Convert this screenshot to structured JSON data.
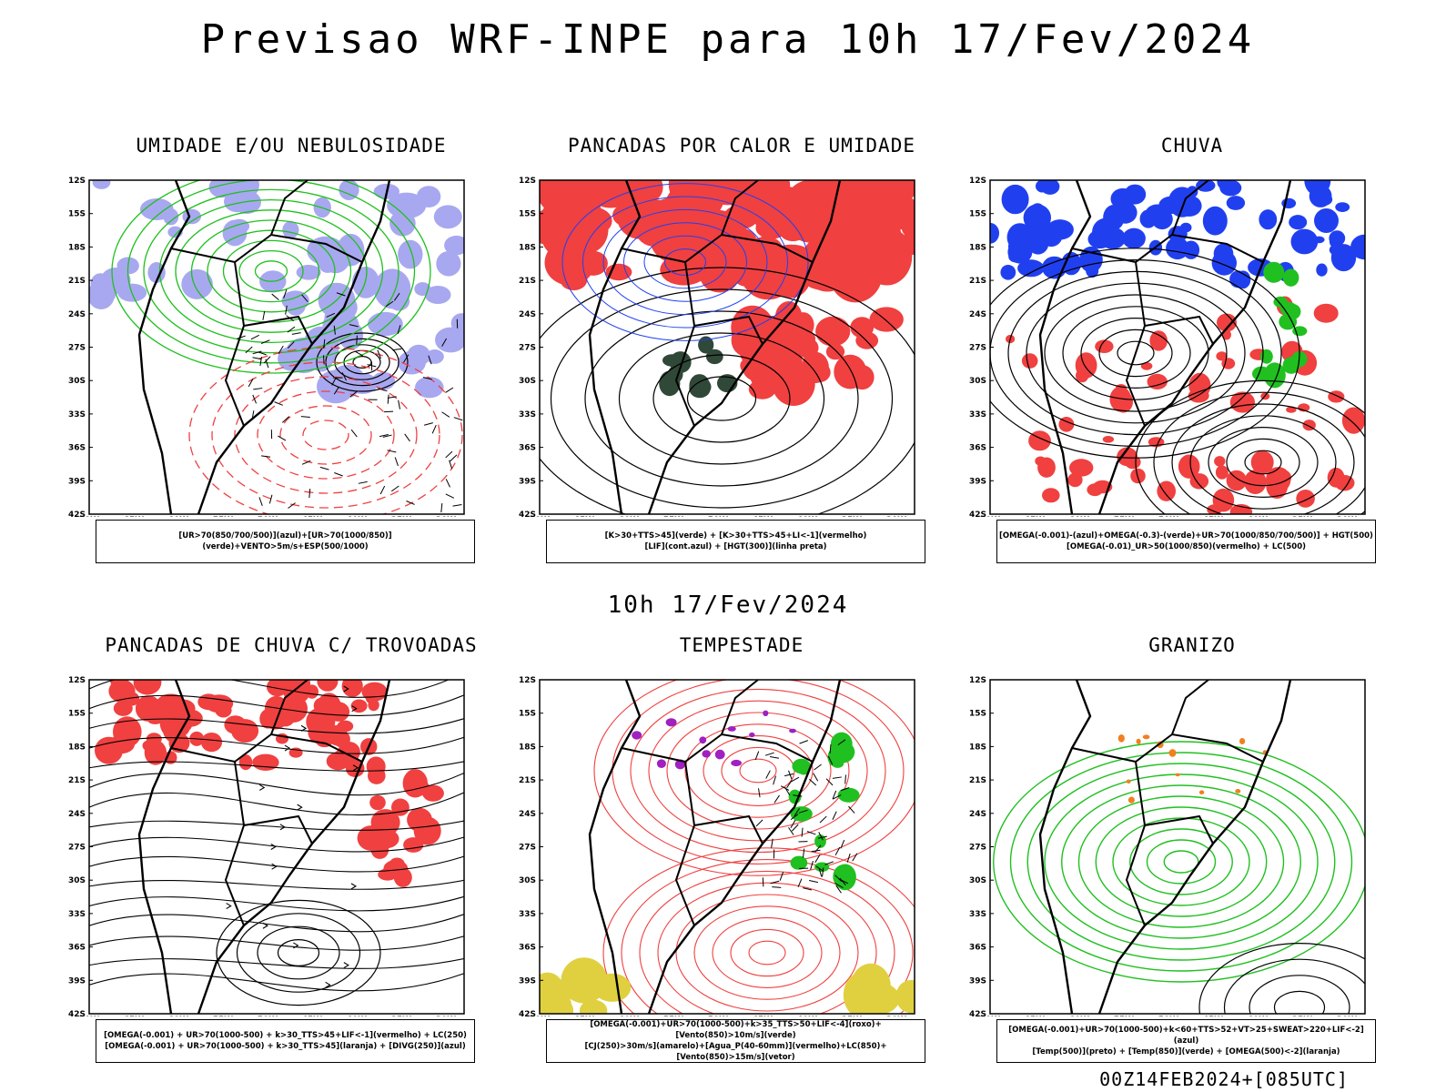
{
  "main_title": "Previsao WRF-INPE  para 10h 17/Fev/2024",
  "mid_title": "10h 17/Fev/2024",
  "footer": "00Z14FEB2024+[085UTC]",
  "lat_ticks": [
    "12S",
    "15S",
    "18S",
    "21S",
    "24S",
    "27S",
    "30S",
    "33S",
    "36S",
    "39S",
    "42S"
  ],
  "lon_ticks": [
    "70W",
    "65W",
    "60W",
    "55W",
    "50W",
    "45W",
    "40W",
    "35W",
    "30W"
  ],
  "colors": {
    "red": "#f04040",
    "blue": "#2040f0",
    "green": "#20c020",
    "lavender": "#a8a8f0",
    "yellow": "#e0d040",
    "purple": "#a020c0",
    "orange": "#f08020",
    "darkgreen": "#304838"
  },
  "panels": [
    {
      "title": "UMIDADE E/OU NEBULOSIDADE",
      "legend": [
        "[UR>70(850/700/500)](azul)+[UR>70(1000/850)](verde)+VENTO>5m/s+ESP(500/1000)"
      ]
    },
    {
      "title": "PANCADAS POR CALOR E UMIDADE",
      "legend": [
        "[K>30+TTS>45](verde) + [K>30+TTS>45+LI<-1](vermelho)",
        "[LIF](cont.azul) + [HGT(300)](linha preta)"
      ]
    },
    {
      "title": "CHUVA",
      "legend": [
        "[OMEGA(-0.001)-(azul)+OMEGA(-0.3)-(verde)+UR>70(1000/850/700/500)] + HGT(500)",
        "[OMEGA(-0.01)_UR>50(1000/850)(vermelho) + LC(500)"
      ]
    },
    {
      "title": "PANCADAS DE CHUVA C/ TROVOADAS",
      "legend": [
        "[OMEGA(-0.001) + UR>70(1000-500) + k>30_TTS>45+LIF<-1](vermelho) + LC(250)",
        "[OMEGA(-0.001) + UR>70(1000-500) + k>30_TTS>45](laranja) + [DIVG(250)](azul)"
      ]
    },
    {
      "title": "TEMPESTADE",
      "legend": [
        "[OMEGA(-0.001)+UR>70(1000-500)+k>35_TTS>50+LIF<-4](roxo)+[Vento(850)>10m/s](verde)",
        "[CJ(250)>30m/s](amarelo)+[Agua_P(40-60mm)](vermelho)+LC(850)+[Vento(850)>15m/s](vetor)"
      ]
    },
    {
      "title": "GRANIZO",
      "legend": [
        "[OMEGA(-0.001)+UR>70(1000-500)+k<60+TTS>52+VT>25+SWEAT>220+LIF<-2](azul)",
        "[Temp(500)](preto) + [Temp(850)](verde) + [OMEGA(500)<-2](laranja)"
      ]
    }
  ]
}
